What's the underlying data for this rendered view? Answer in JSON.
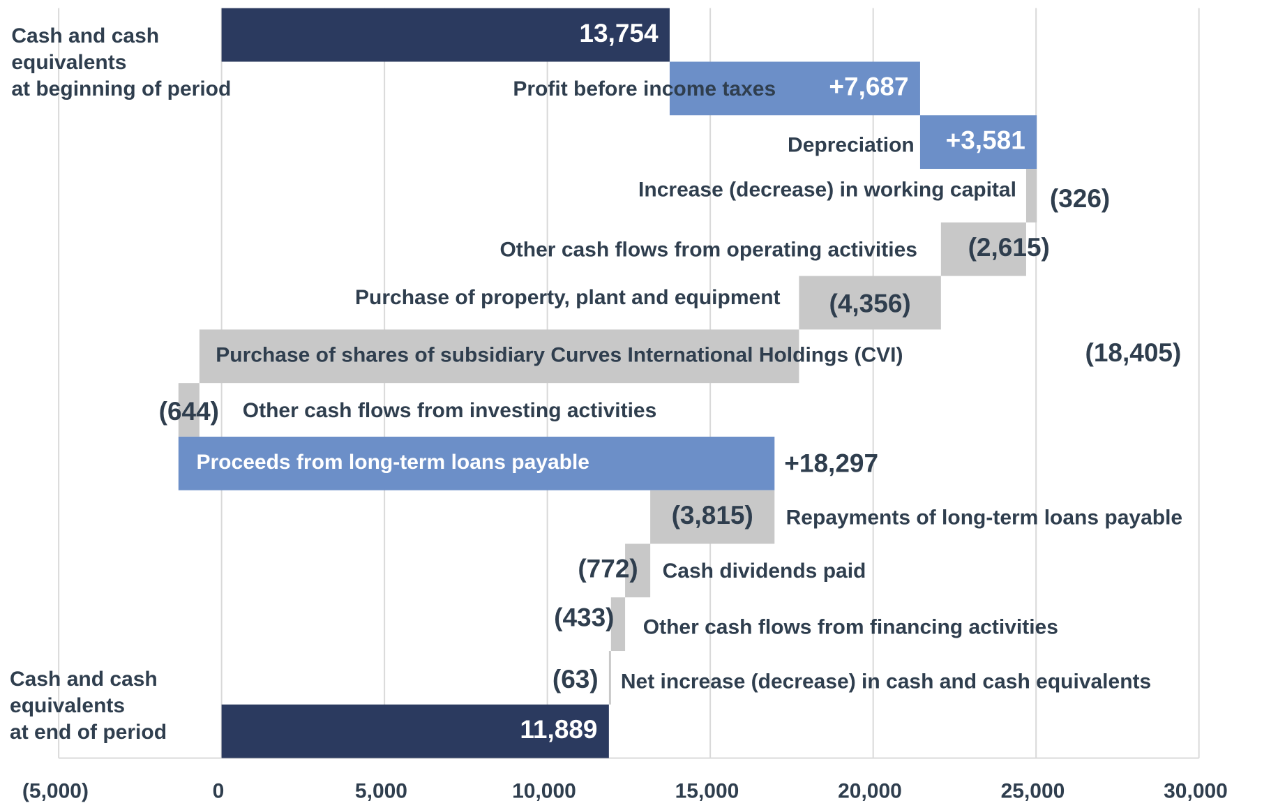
{
  "chart_data": {
    "type": "waterfall",
    "orientation": "horizontal",
    "categories": [
      "Cash and cash\nequivalents\nat beginning of period",
      "Profit before income taxes",
      "Depreciation",
      "Increase (decrease) in working capital",
      "Other cash flows from operating activities",
      "Purchase of property, plant and equipment",
      "Purchase of shares of subsidiary Curves International Holdings (CVI)",
      "Other cash flows from investing activities",
      "Proceeds from long-term loans payable",
      "Repayments of long-term loans payable",
      "Cash dividends paid",
      "Other cash flows from financing activities",
      "Net increase (decrease) in cash and cash equivalents",
      "Cash and cash\nequivalents\nat end of period"
    ],
    "measures": [
      "total",
      "relative",
      "relative",
      "relative",
      "relative",
      "relative",
      "relative",
      "relative",
      "relative",
      "relative",
      "relative",
      "relative",
      "relative",
      "total"
    ],
    "values": [
      13754,
      7687,
      3581,
      -326,
      -2615,
      -4356,
      -18405,
      -644,
      18297,
      -3815,
      -772,
      -433,
      -63,
      11889
    ],
    "value_labels": [
      "13,754",
      "+7,687",
      "+3,581",
      "(326)",
      "(2,615)",
      "(4,356)",
      "(18,405)",
      "(644)",
      "+18,297",
      "(3,815)",
      "(772)",
      "(433)",
      "(63)",
      "11,889"
    ],
    "colors": {
      "total": "#2b3a5f",
      "increase": "#6c8fc8",
      "decrease": "#c8c8c8"
    },
    "xlim": [
      -5000,
      30000
    ],
    "xticks": [
      {
        "value": -5000,
        "label": "(5,000)"
      },
      0,
      {
        "value": 5000,
        "label": "5,000"
      },
      {
        "value": 10000,
        "label": "10,000"
      },
      {
        "value": 15000,
        "label": "15,000"
      },
      {
        "value": 20000,
        "label": "20,000"
      },
      {
        "value": 25000,
        "label": "25,000"
      },
      {
        "value": 30000,
        "label": "30,000"
      }
    ],
    "grid": true
  }
}
